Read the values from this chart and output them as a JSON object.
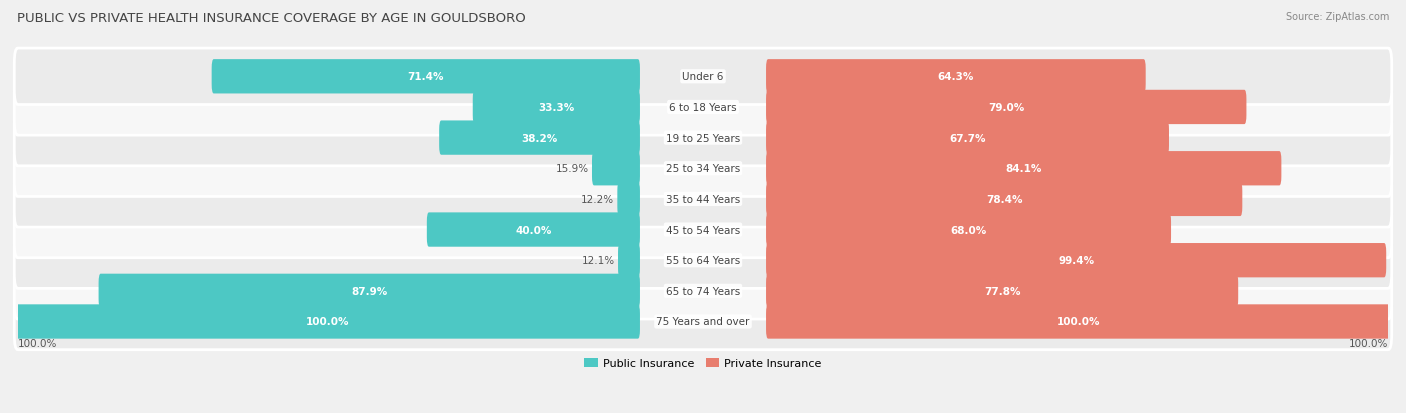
{
  "title": "PUBLIC VS PRIVATE HEALTH INSURANCE COVERAGE BY AGE IN GOULDSBORO",
  "source": "Source: ZipAtlas.com",
  "categories": [
    "Under 6",
    "6 to 18 Years",
    "19 to 25 Years",
    "25 to 34 Years",
    "35 to 44 Years",
    "45 to 54 Years",
    "55 to 64 Years",
    "65 to 74 Years",
    "75 Years and over"
  ],
  "public": [
    71.4,
    33.3,
    38.2,
    15.9,
    12.2,
    40.0,
    12.1,
    87.9,
    100.0
  ],
  "private": [
    64.3,
    79.0,
    67.7,
    84.1,
    78.4,
    68.0,
    99.4,
    77.8,
    100.0
  ],
  "public_color": "#4dc8c4",
  "private_color": "#e87d6e",
  "row_bg_even": "#ebebeb",
  "row_bg_odd": "#f7f7f7",
  "fig_bg": "#f0f0f0",
  "title_color": "#444444",
  "source_color": "#888888",
  "val_label_inside_color": "white",
  "val_label_outside_color": "#555555",
  "cat_label_color": "#444444",
  "legend_public": "Public Insurance",
  "legend_private": "Private Insurance",
  "max_val": 100.0,
  "inside_threshold": 18.0,
  "bottom_label": "100.0%"
}
